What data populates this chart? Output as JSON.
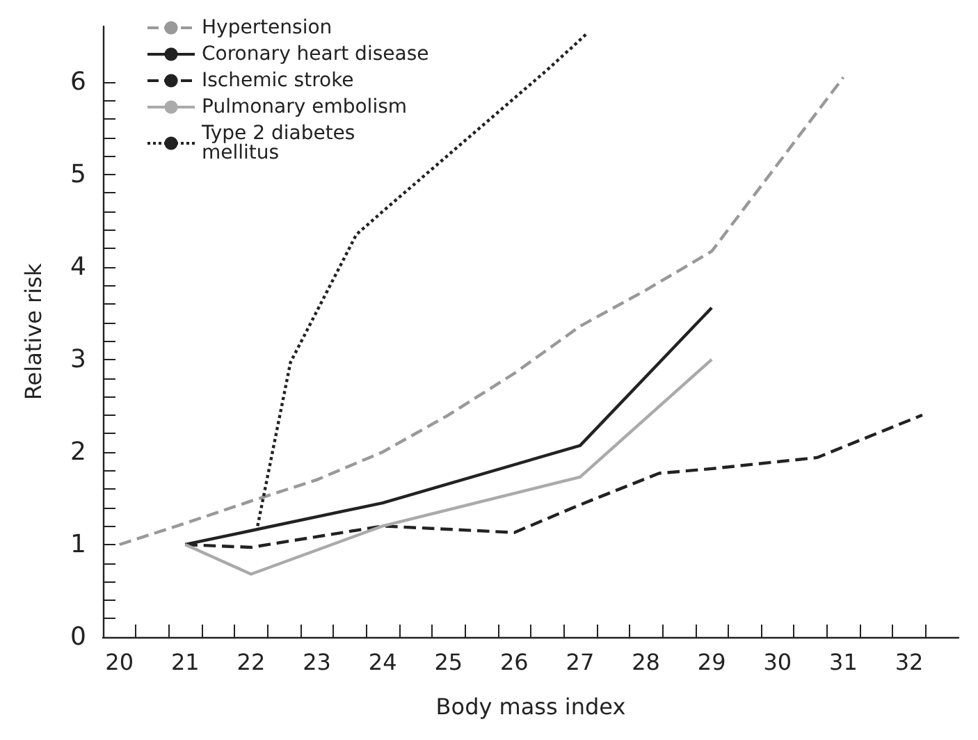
{
  "chart_data": {
    "type": "line",
    "xlabel": "Body mass index",
    "ylabel": "Relative risk",
    "legend": "top left",
    "grid": false,
    "marker": "none",
    "xlim": [
      19.75,
      32.75
    ],
    "xticks": [
      20,
      21,
      22,
      23,
      24,
      25,
      26,
      27,
      28,
      29,
      30,
      31,
      32,
      {
        "value": 20.25,
        "label": null
      },
      {
        "value": 20.75,
        "label": null
      },
      {
        "value": 21.25,
        "label": null
      },
      {
        "value": 21.75,
        "label": null
      },
      {
        "value": 22.25,
        "label": null
      },
      {
        "value": 22.75,
        "label": null
      },
      {
        "value": 23.25,
        "label": null
      },
      {
        "value": 23.75,
        "label": null
      },
      {
        "value": 24.25,
        "label": null
      },
      {
        "value": 24.75,
        "label": null
      },
      {
        "value": 25.25,
        "label": null
      },
      {
        "value": 25.75,
        "label": null
      },
      {
        "value": 26.25,
        "label": null
      },
      {
        "value": 26.75,
        "label": null
      },
      {
        "value": 27.25,
        "label": null
      },
      {
        "value": 27.75,
        "label": null
      },
      {
        "value": 28.25,
        "label": null
      },
      {
        "value": 28.75,
        "label": null
      },
      {
        "value": 29.25,
        "label": null
      },
      {
        "value": 29.75,
        "label": null
      },
      {
        "value": 30.25,
        "label": null
      },
      {
        "value": 30.75,
        "label": null
      },
      {
        "value": 31.25,
        "label": null
      },
      {
        "value": 31.75,
        "label": null
      },
      {
        "value": 32.25,
        "label": null
      }
    ],
    "ylim": [
      0,
      6.6
    ],
    "yticks": [
      0,
      1,
      2,
      3,
      4,
      5,
      6,
      {
        "value": 0.2,
        "label": null
      },
      {
        "value": 0.4,
        "label": null
      },
      {
        "value": 0.6,
        "label": null
      },
      {
        "value": 0.8,
        "label": null
      },
      {
        "value": 1.2,
        "label": null
      },
      {
        "value": 1.4,
        "label": null
      },
      {
        "value": 1.6,
        "label": null
      },
      {
        "value": 1.8,
        "label": null
      },
      {
        "value": 2.2,
        "label": null
      },
      {
        "value": 2.4,
        "label": null
      },
      {
        "value": 2.6,
        "label": null
      },
      {
        "value": 2.8,
        "label": null
      },
      {
        "value": 3.2,
        "label": null
      },
      {
        "value": 3.4,
        "label": null
      },
      {
        "value": 3.6,
        "label": null
      },
      {
        "value": 3.8,
        "label": null
      },
      {
        "value": 4.2,
        "label": null
      },
      {
        "value": 4.4,
        "label": null
      },
      {
        "value": 4.6,
        "label": null
      },
      {
        "value": 4.8,
        "label": null
      },
      {
        "value": 5.2,
        "label": null
      },
      {
        "value": 5.4,
        "label": null
      },
      {
        "value": 5.6,
        "label": null
      },
      {
        "value": 5.8,
        "label": null
      }
    ],
    "series": [
      {
        "name": "Hypertension",
        "color": "#999999",
        "line_style": "dashed",
        "x": [
          20,
          21,
          22,
          23,
          24,
          25,
          26,
          27,
          28,
          29,
          31
        ],
        "values": [
          1.0,
          1.23,
          1.47,
          1.7,
          2.0,
          2.4,
          2.85,
          3.36,
          3.75,
          4.17,
          6.05
        ]
      },
      {
        "name": "Coronary heart disease",
        "color": "#222222",
        "line_style": "solid",
        "x": [
          21,
          22,
          24,
          27,
          29
        ],
        "values": [
          1.0,
          1.15,
          1.45,
          2.07,
          3.56
        ]
      },
      {
        "name": "Ischemic stroke",
        "color": "#222222",
        "line_style": "dashed",
        "x": [
          21,
          22,
          24,
          26,
          27,
          28.2,
          29,
          30.6,
          32.2
        ],
        "values": [
          1.0,
          0.97,
          1.2,
          1.13,
          1.43,
          1.77,
          1.82,
          1.94,
          2.4
        ]
      },
      {
        "name": "Pulmonary embolism",
        "color": "#aaaaaa",
        "line_style": "solid",
        "x": [
          21,
          22,
          24,
          27,
          29
        ],
        "values": [
          1.0,
          0.68,
          1.2,
          1.73,
          3.0
        ]
      },
      {
        "name": "Type 2 diabetes\nmellitus",
        "color": "#222222",
        "line_style": "dotted",
        "x": [
          22.1,
          22.6,
          23.6,
          24,
          26.5,
          27.1
        ],
        "values": [
          1.2,
          2.97,
          4.35,
          4.6,
          6.13,
          6.52
        ]
      }
    ]
  }
}
